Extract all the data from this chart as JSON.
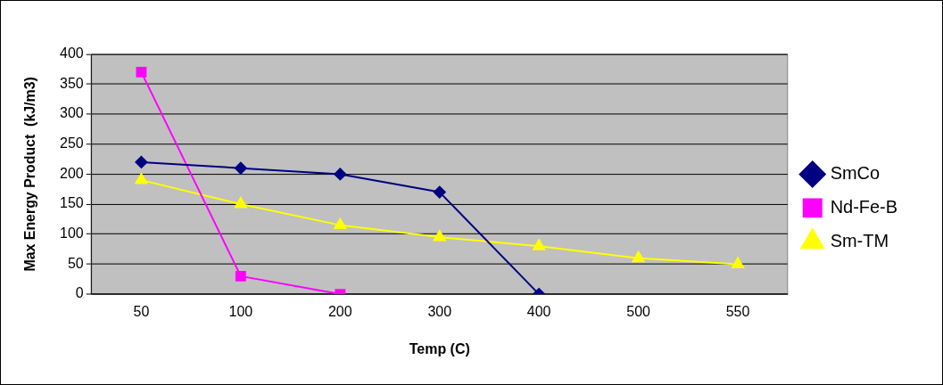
{
  "chart_data": {
    "type": "line",
    "xlabel": "Temp (C)",
    "ylabel": "Max Energy Product  (kJ/m3)",
    "categories": [
      "50",
      "100",
      "200",
      "300",
      "400",
      "500",
      "550"
    ],
    "ylim": [
      0,
      400
    ],
    "yticks": [
      0,
      50,
      100,
      150,
      200,
      250,
      300,
      350,
      400
    ],
    "grid": "y",
    "legend": "right",
    "series": [
      {
        "name": "SmCo",
        "color": "#000080",
        "marker": "diamond",
        "values": [
          220,
          210,
          200,
          170,
          0,
          null,
          null
        ]
      },
      {
        "name": "Nd-Fe-B",
        "color": "#ff00ff",
        "marker": "square",
        "values": [
          370,
          30,
          0,
          null,
          null,
          null,
          null
        ]
      },
      {
        "name": "Sm-TM",
        "color": "#ffff00",
        "marker": "triangle",
        "values": [
          190,
          150,
          115,
          95,
          80,
          60,
          50
        ]
      }
    ]
  }
}
